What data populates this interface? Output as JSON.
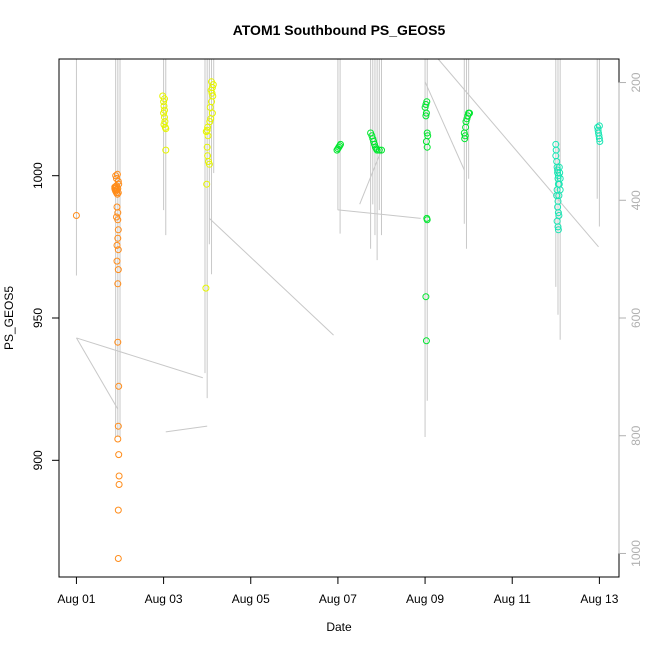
{
  "chart_data": {
    "type": "scatter",
    "title": "ATOM1 Southbound PS_GEOS5",
    "xlabel": "Date",
    "ylabel": "PS_GEOS5",
    "xlim": [
      -0.4,
      12.45
    ],
    "ylim": [
      859,
      1041
    ],
    "x_ticks": [
      {
        "value": 0,
        "label": "Aug 01"
      },
      {
        "value": 2,
        "label": "Aug 03"
      },
      {
        "value": 4,
        "label": "Aug 05"
      },
      {
        "value": 6,
        "label": "Aug 07"
      },
      {
        "value": 8,
        "label": "Aug 09"
      },
      {
        "value": 10,
        "label": "Aug 11"
      },
      {
        "value": 12,
        "label": "Aug 13"
      }
    ],
    "y_ticks": [
      {
        "value": 900,
        "label": "900"
      },
      {
        "value": 950,
        "label": "950"
      },
      {
        "value": 1000,
        "label": "1000"
      }
    ],
    "y2_ticks": [
      {
        "value": 200,
        "label": "200"
      },
      {
        "value": 400,
        "label": "400"
      },
      {
        "value": 600,
        "label": "600"
      },
      {
        "value": 800,
        "label": "800"
      },
      {
        "value": 1000,
        "label": "1000"
      }
    ],
    "y2lim": [
      160,
      1040
    ],
    "grid": false,
    "colors": {
      "orange": "#ff8c1a",
      "yellow": "#e6f500",
      "green": "#00e62e",
      "cyan": "#1ae6b4",
      "trace": "#c8c8c8",
      "axis": "#000000",
      "right_axis": "#b0b0b0"
    },
    "series": [
      {
        "color": "orange",
        "points": [
          [
            0,
            986
          ],
          [
            0.88,
            995.5
          ],
          [
            0.88,
            996
          ],
          [
            0.89,
            995
          ],
          [
            0.9,
            994.5
          ],
          [
            0.9,
            996
          ],
          [
            0.91,
            995
          ],
          [
            0.92,
            994
          ],
          [
            0.92,
            996.5
          ],
          [
            0.93,
            995
          ],
          [
            0.94,
            993.5
          ],
          [
            0.95,
            995.5
          ],
          [
            0.96,
            994
          ],
          [
            0.97,
            997
          ],
          [
            0.9,
            1000
          ],
          [
            0.92,
            999
          ],
          [
            0.94,
            1000.5
          ],
          [
            0.96,
            998
          ],
          [
            0.93,
            989
          ],
          [
            0.95,
            987
          ],
          [
            0.92,
            985.5
          ],
          [
            0.95,
            984.5
          ],
          [
            0.96,
            981
          ],
          [
            0.95,
            978
          ],
          [
            0.93,
            975.5
          ],
          [
            0.96,
            974
          ],
          [
            0.93,
            970
          ],
          [
            0.96,
            967
          ],
          [
            0.95,
            962
          ],
          [
            0.95,
            941.5
          ],
          [
            0.97,
            926
          ],
          [
            0.96,
            912
          ],
          [
            0.95,
            907.5
          ],
          [
            0.97,
            902
          ],
          [
            0.98,
            894.5
          ],
          [
            0.98,
            891.5
          ],
          [
            0.96,
            882.5
          ],
          [
            0.96,
            865.5
          ]
        ]
      },
      {
        "color": "yellow",
        "points": [
          [
            2.0,
            1026
          ],
          [
            2.01,
            1024.5
          ],
          [
            2.02,
            1023
          ],
          [
            2.0,
            1022
          ],
          [
            2.02,
            1020.5
          ],
          [
            2.03,
            1019
          ],
          [
            2.01,
            1018
          ],
          [
            2.04,
            1017
          ],
          [
            2.05,
            1016.5
          ],
          [
            2.05,
            1009
          ],
          [
            1.98,
            1028
          ],
          [
            2.02,
            1027
          ],
          [
            3.0,
            1016
          ],
          [
            3.01,
            1017
          ],
          [
            2.98,
            1015.5
          ],
          [
            3.02,
            1014
          ],
          [
            3.0,
            1010
          ],
          [
            3.01,
            1007
          ],
          [
            3.03,
            1005
          ],
          [
            3.05,
            1004
          ],
          [
            2.99,
            997
          ],
          [
            2.97,
            960.5
          ],
          [
            3.1,
            1033
          ],
          [
            3.12,
            1031
          ],
          [
            3.09,
            1030
          ],
          [
            3.11,
            1029
          ],
          [
            3.13,
            1028
          ],
          [
            3.1,
            1026
          ],
          [
            3.07,
            1024
          ],
          [
            3.12,
            1022
          ],
          [
            3.08,
            1020
          ],
          [
            3.06,
            1019
          ],
          [
            3.14,
            1032
          ]
        ]
      },
      {
        "color": "green",
        "points": [
          [
            5.98,
            1009
          ],
          [
            6.0,
            1009.5
          ],
          [
            6.02,
            1010
          ],
          [
            6.04,
            1010.5
          ],
          [
            6.06,
            1011
          ],
          [
            6.75,
            1015
          ],
          [
            6.78,
            1014
          ],
          [
            6.8,
            1013
          ],
          [
            6.82,
            1012
          ],
          [
            6.84,
            1011
          ],
          [
            6.86,
            1010
          ],
          [
            6.88,
            1009.5
          ],
          [
            6.9,
            1009
          ],
          [
            6.95,
            1009
          ],
          [
            7.0,
            1009
          ],
          [
            8.0,
            1024
          ],
          [
            8.02,
            1025
          ],
          [
            8.04,
            1026
          ],
          [
            8.03,
            1022
          ],
          [
            8.02,
            1021
          ],
          [
            8.05,
            1015
          ],
          [
            8.06,
            1014
          ],
          [
            8.03,
            1012
          ],
          [
            8.05,
            1010
          ],
          [
            8.04,
            985
          ],
          [
            8.05,
            984.5
          ],
          [
            8.02,
            957.5
          ],
          [
            8.03,
            942
          ],
          [
            8.9,
            1015
          ],
          [
            8.92,
            1014
          ],
          [
            8.91,
            1013
          ],
          [
            8.94,
            1019
          ],
          [
            8.96,
            1020
          ],
          [
            8.98,
            1021
          ],
          [
            9.0,
            1022
          ],
          [
            9.02,
            1022
          ],
          [
            8.93,
            1017
          ]
        ]
      },
      {
        "color": "cyan",
        "points": [
          [
            11.0,
            1011
          ],
          [
            11.01,
            1009
          ],
          [
            11.0,
            1007
          ],
          [
            11.02,
            1005
          ],
          [
            11.03,
            1003
          ],
          [
            11.04,
            1001
          ],
          [
            11.05,
            999
          ],
          [
            11.06,
            997
          ],
          [
            11.03,
            995
          ],
          [
            11.02,
            993
          ],
          [
            11.05,
            991
          ],
          [
            11.04,
            989
          ],
          [
            11.06,
            987
          ],
          [
            11.07,
            986
          ],
          [
            11.03,
            984
          ],
          [
            11.05,
            982
          ],
          [
            11.06,
            981
          ],
          [
            11.08,
            1003
          ],
          [
            11.09,
            1001
          ],
          [
            11.1,
            999
          ],
          [
            11.08,
            997
          ],
          [
            11.1,
            995
          ],
          [
            11.07,
            993
          ],
          [
            11.06,
            1000
          ],
          [
            11.04,
            1002
          ],
          [
            11.96,
            1017
          ],
          [
            11.97,
            1016
          ],
          [
            11.98,
            1015
          ],
          [
            11.99,
            1014
          ],
          [
            12.0,
            1013
          ],
          [
            12.01,
            1012
          ],
          [
            12.0,
            1017.5
          ]
        ]
      }
    ]
  }
}
